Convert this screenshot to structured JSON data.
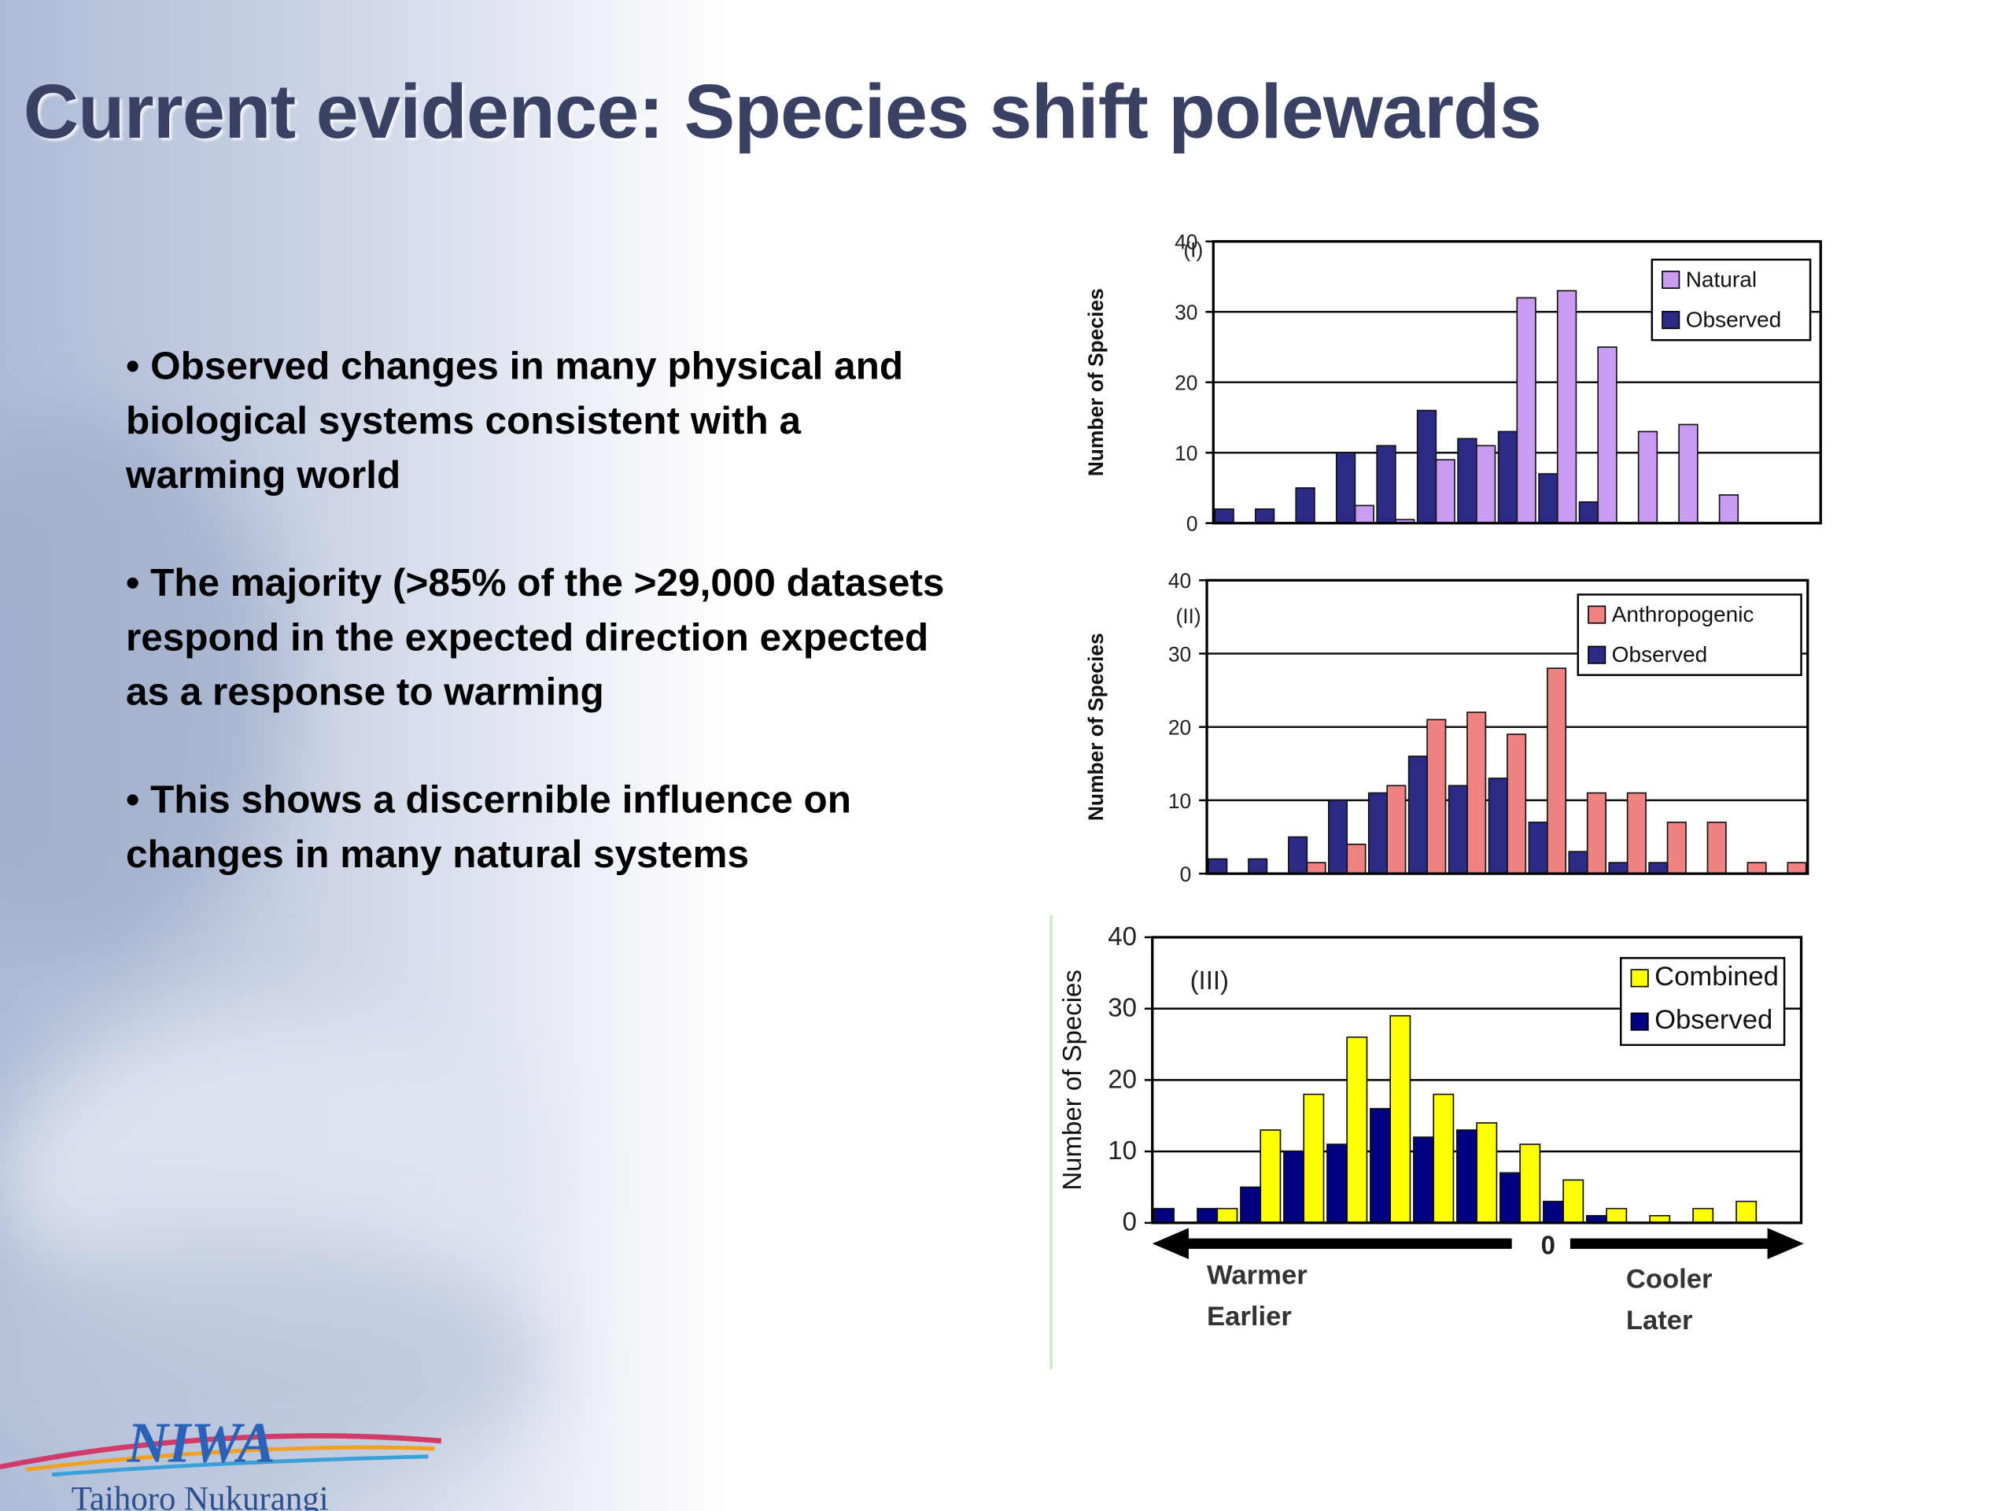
{
  "title": "Current evidence: Species shift polewards",
  "bullets": [
    "• Observed changes in many physical and biological systems consistent with a warming world",
    "•  The majority (>85% of the >29,000 datasets respond in the expected direction expected as a response to warming",
    "• This shows a discernible influence on changes in many natural systems"
  ],
  "logo": {
    "name": "NIWA",
    "subtitle": "Taihoro Nukurangi"
  },
  "chart_data": [
    {
      "type": "bar",
      "annotation": "(I)",
      "ylabel": "Number of Species",
      "categories": [
        null,
        null,
        null,
        null,
        null,
        null,
        null,
        null,
        null,
        null,
        null,
        null,
        null,
        null,
        null
      ],
      "series": [
        {
          "name": "Natural",
          "color": "#c99cf2",
          "values": [
            0,
            0,
            0,
            2.5,
            0.5,
            9,
            11,
            32,
            33,
            25,
            13,
            14,
            4,
            0,
            0
          ]
        },
        {
          "name": "Observed",
          "color": "#2c2a86",
          "values": [
            2,
            2,
            5,
            10,
            11,
            16,
            12,
            13,
            7,
            3,
            0,
            0,
            0,
            0,
            0
          ]
        }
      ],
      "ylim": [
        0,
        40
      ],
      "yticks": [
        0,
        10,
        20,
        30,
        40
      ],
      "grid": true,
      "legend": "upper right"
    },
    {
      "type": "bar",
      "annotation": "(II)",
      "ylabel": "Number of Species",
      "categories": [
        null,
        null,
        null,
        null,
        null,
        null,
        null,
        null,
        null,
        null,
        null,
        null,
        null,
        null,
        null
      ],
      "series": [
        {
          "name": "Anthropogenic",
          "color": "#f08282",
          "values": [
            0,
            0,
            1.5,
            4,
            12,
            21,
            22,
            19,
            28,
            11,
            11,
            7,
            7,
            1.5,
            1.5
          ]
        },
        {
          "name": "Observed",
          "color": "#2c2a86",
          "values": [
            2,
            2,
            5,
            10,
            11,
            16,
            12,
            13,
            7,
            3,
            1.5,
            1.5,
            0,
            0,
            0
          ]
        }
      ],
      "ylim": [
        0,
        40
      ],
      "yticks": [
        0,
        10,
        20,
        30,
        40
      ],
      "grid": true,
      "legend": "upper right"
    },
    {
      "type": "bar",
      "annotation": "(III)",
      "ylabel": "Number of Species",
      "categories": [
        null,
        null,
        null,
        null,
        null,
        null,
        null,
        null,
        null,
        null,
        null,
        null,
        null,
        null,
        null
      ],
      "series": [
        {
          "name": "Combined",
          "color": "#ffff00",
          "values": [
            0,
            2,
            13,
            18,
            26,
            29,
            18,
            14,
            11,
            6,
            2,
            1,
            2,
            3,
            0
          ]
        },
        {
          "name": "Observed",
          "color": "#000080",
          "values": [
            2,
            2,
            5,
            10,
            11,
            16,
            12,
            13,
            7,
            3,
            1,
            0,
            0,
            0,
            0
          ]
        }
      ],
      "ylim": [
        0,
        40
      ],
      "yticks": [
        0,
        10,
        20,
        30,
        40
      ],
      "grid": true,
      "legend": "upper right",
      "axis_labels": {
        "left": [
          "Warmer",
          "Earlier"
        ],
        "zero": "0",
        "right": [
          "Cooler",
          "Later"
        ]
      }
    }
  ]
}
